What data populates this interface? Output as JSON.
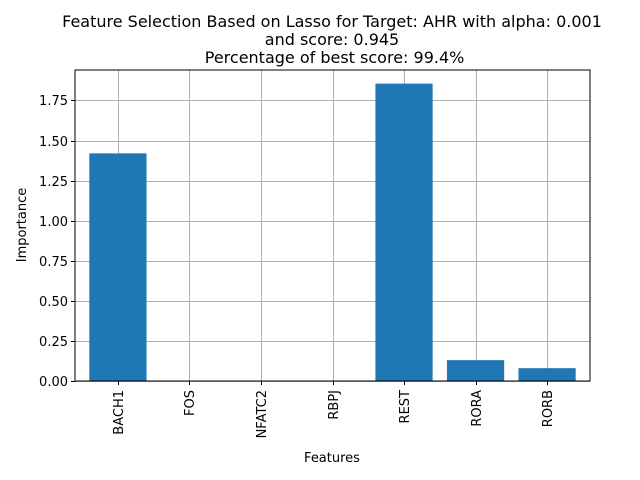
{
  "chart_data": {
    "type": "bar",
    "title_lines": [
      "Feature Selection Based on Lasso for Target: AHR with alpha: 0.001",
      "and score: 0.945",
      " Percentage of best score: 99.4%"
    ],
    "xlabel": "Features",
    "ylabel": "Importance",
    "categories": [
      "BACH1",
      "FOS",
      "NFATC2",
      "RBPJ",
      "REST",
      "RORA",
      "RORB"
    ],
    "values": [
      1.42,
      0.0,
      0.0,
      0.0,
      1.855,
      0.13,
      0.08
    ],
    "ylim": [
      0,
      1.94
    ],
    "yticks": [
      0.0,
      0.25,
      0.5,
      0.75,
      1.0,
      1.25,
      1.5,
      1.75
    ],
    "ytick_labels": [
      "0.00",
      "0.25",
      "0.50",
      "0.75",
      "1.00",
      "1.25",
      "1.50",
      "1.75"
    ],
    "grid": true,
    "bar_color": "#1f77b4",
    "grid_color": "#b0b0b0"
  }
}
